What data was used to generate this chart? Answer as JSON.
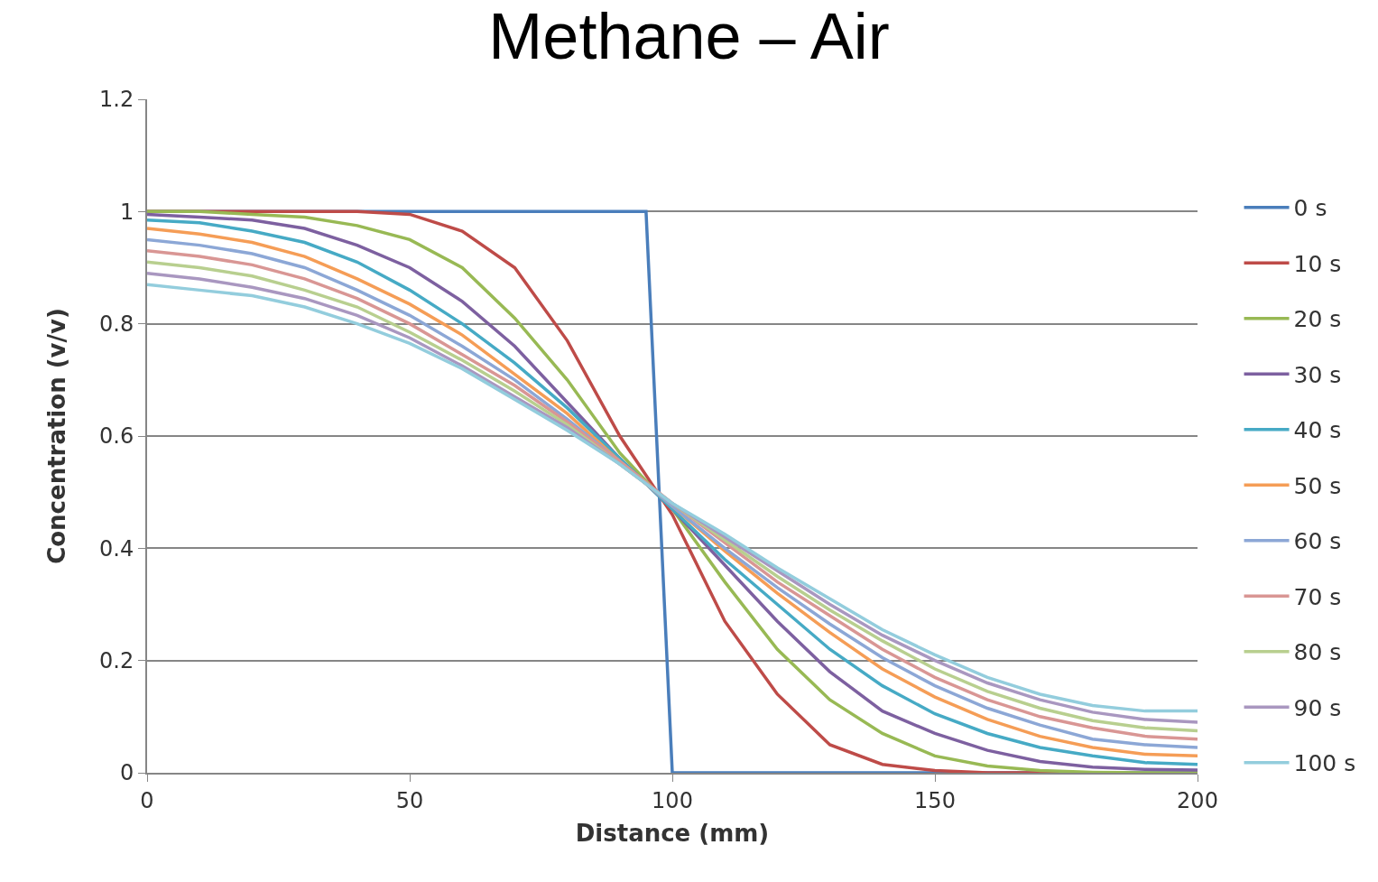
{
  "chart_data": {
    "type": "line",
    "title": "Methane – Air",
    "xlabel": "Distance (mm)",
    "ylabel": "Concentration (v/v)",
    "x": [
      0,
      10,
      20,
      30,
      40,
      50,
      60,
      70,
      80,
      90,
      100,
      110,
      120,
      130,
      140,
      150,
      160,
      170,
      180,
      190,
      200
    ],
    "xlim": [
      0,
      200
    ],
    "xticks": [
      0,
      50,
      100,
      150,
      200
    ],
    "ylim": [
      0,
      1.2
    ],
    "yticks": [
      0,
      0.2,
      0.4,
      0.6,
      0.8,
      1,
      1.2
    ],
    "grid": "y",
    "legend": "right",
    "marker": "none",
    "line_style": "solid",
    "series": [
      {
        "name": "0 s",
        "color": "#4a7ebb",
        "x": [
          0,
          95,
          100,
          200
        ],
        "values": [
          1,
          1,
          0,
          0
        ]
      },
      {
        "name": "10 s",
        "color": "#be4b48",
        "values": [
          1.0,
          1.0,
          1.0,
          1.0,
          1.0,
          0.995,
          0.965,
          0.9,
          0.77,
          0.6,
          0.46,
          0.27,
          0.14,
          0.05,
          0.015,
          0.004,
          0,
          0,
          0,
          null,
          null
        ]
      },
      {
        "name": "20 s",
        "color": "#98b954",
        "values": [
          1.0,
          1.0,
          0.995,
          0.99,
          0.975,
          0.95,
          0.9,
          0.81,
          0.7,
          0.57,
          0.47,
          0.34,
          0.22,
          0.13,
          0.07,
          0.03,
          0.012,
          0.004,
          0.001,
          0,
          0
        ]
      },
      {
        "name": "30 s",
        "color": "#7d60a0",
        "values": [
          0.995,
          0.99,
          0.985,
          0.97,
          0.94,
          0.9,
          0.84,
          0.76,
          0.66,
          0.56,
          0.47,
          0.37,
          0.27,
          0.18,
          0.11,
          0.07,
          0.04,
          0.02,
          0.01,
          0.006,
          0.005
        ]
      },
      {
        "name": "40 s",
        "color": "#46aac5",
        "values": [
          0.985,
          0.98,
          0.965,
          0.945,
          0.91,
          0.86,
          0.8,
          0.73,
          0.65,
          0.56,
          0.47,
          0.38,
          0.3,
          0.22,
          0.155,
          0.105,
          0.07,
          0.045,
          0.03,
          0.018,
          0.015
        ]
      },
      {
        "name": "50 s",
        "color": "#f59d56",
        "values": [
          0.97,
          0.96,
          0.945,
          0.92,
          0.88,
          0.835,
          0.78,
          0.71,
          0.64,
          0.555,
          0.475,
          0.395,
          0.32,
          0.25,
          0.185,
          0.135,
          0.095,
          0.065,
          0.045,
          0.033,
          0.03
        ]
      },
      {
        "name": "60 s",
        "color": "#8ca7d6",
        "values": [
          0.95,
          0.94,
          0.925,
          0.9,
          0.86,
          0.815,
          0.76,
          0.7,
          0.63,
          0.555,
          0.475,
          0.4,
          0.33,
          0.265,
          0.205,
          0.155,
          0.115,
          0.085,
          0.06,
          0.05,
          0.045
        ]
      },
      {
        "name": "70 s",
        "color": "#d99694",
        "values": [
          0.93,
          0.92,
          0.905,
          0.88,
          0.845,
          0.8,
          0.745,
          0.69,
          0.625,
          0.555,
          0.48,
          0.41,
          0.34,
          0.28,
          0.22,
          0.17,
          0.13,
          0.1,
          0.08,
          0.065,
          0.06
        ]
      },
      {
        "name": "80 s",
        "color": "#b8cf8f",
        "values": [
          0.91,
          0.9,
          0.885,
          0.86,
          0.83,
          0.785,
          0.735,
          0.68,
          0.62,
          0.55,
          0.48,
          0.415,
          0.35,
          0.29,
          0.235,
          0.185,
          0.145,
          0.115,
          0.093,
          0.08,
          0.075
        ]
      },
      {
        "name": "90 s",
        "color": "#a997c0",
        "values": [
          0.89,
          0.88,
          0.865,
          0.845,
          0.815,
          0.775,
          0.725,
          0.67,
          0.615,
          0.55,
          0.48,
          0.42,
          0.36,
          0.3,
          0.245,
          0.2,
          0.16,
          0.13,
          0.108,
          0.095,
          0.09
        ]
      },
      {
        "name": "100 s",
        "color": "#93cddd",
        "values": [
          0.87,
          0.86,
          0.85,
          0.83,
          0.8,
          0.765,
          0.72,
          0.665,
          0.61,
          0.55,
          0.48,
          0.425,
          0.365,
          0.31,
          0.255,
          0.21,
          0.17,
          0.14,
          0.12,
          0.11,
          0.11
        ]
      }
    ]
  }
}
